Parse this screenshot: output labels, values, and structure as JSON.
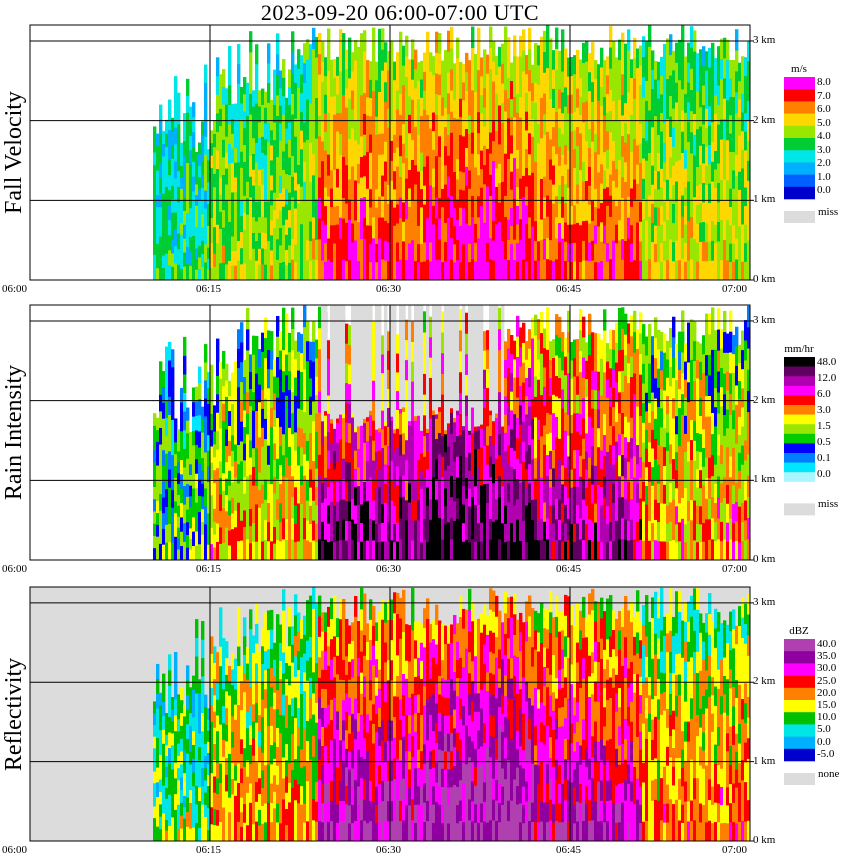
{
  "title": "2023-09-20   06:00-07:00 UTC",
  "time_ticks": [
    "06:00",
    "06:15",
    "06:30",
    "06:45",
    "07:00"
  ],
  "height_ticks": [
    "0 km",
    "1 km",
    "2 km",
    "3 km"
  ],
  "colors": {
    "missing": "#dcdcdc",
    "grid": "#000000"
  },
  "chart_data": [
    {
      "type": "heatmap",
      "title": "Fall Velocity",
      "xlabel": "",
      "ylabel": "",
      "xlim": [
        "06:00",
        "07:00"
      ],
      "ylim_km": [
        0,
        3.2
      ],
      "legend": {
        "unit": "m/s",
        "labels": [
          "8.0",
          "7.0",
          "6.0",
          "5.0",
          "4.0",
          "3.0",
          "2.0",
          "1.0",
          "0.0"
        ],
        "colors": [
          "#ff00ff",
          "#ff0000",
          "#ff8000",
          "#ffd700",
          "#99e600",
          "#00cc33",
          "#00e6e6",
          "#00b0ff",
          "#0060ff",
          "#0000cc"
        ],
        "missing_label": "miss",
        "missing_color": "#dcdcdc"
      }
    },
    {
      "type": "heatmap",
      "title": "Rain Intensity",
      "xlabel": "",
      "ylabel": "",
      "xlim": [
        "06:00",
        "07:00"
      ],
      "ylim_km": [
        0,
        3.2
      ],
      "legend": {
        "unit": "mm/hr",
        "labels": [
          "48.0",
          "12.0",
          "6.0",
          "3.0",
          "1.5",
          "0.5",
          "0.1",
          "0.0"
        ],
        "colors": [
          "#000000",
          "#600060",
          "#b000b0",
          "#ff00ff",
          "#ff0000",
          "#ff8000",
          "#ffff00",
          "#99e600",
          "#00cc00",
          "#0000ff",
          "#0080ff",
          "#00e6ff",
          "#aaf5ff",
          "#ffffff"
        ],
        "missing_label": "miss",
        "missing_color": "#dcdcdc"
      }
    },
    {
      "type": "heatmap",
      "title": "Reflectivity",
      "xlabel": "",
      "ylabel": "",
      "xlim": [
        "06:00",
        "07:00"
      ],
      "ylim_km": [
        0,
        3.2
      ],
      "legend": {
        "unit": "dBZ",
        "labels": [
          "40.0",
          "35.0",
          "30.0",
          "25.0",
          "20.0",
          "15.0",
          "10.0",
          "5.0",
          "0.0",
          "-5.0"
        ],
        "colors": [
          "#b040b0",
          "#9000a0",
          "#ff00ff",
          "#ff0000",
          "#ff8000",
          "#ffff00",
          "#00c000",
          "#00e6e6",
          "#00b0ff",
          "#0000cc"
        ],
        "missing_label": "none",
        "missing_color": "#dcdcdc"
      }
    }
  ]
}
